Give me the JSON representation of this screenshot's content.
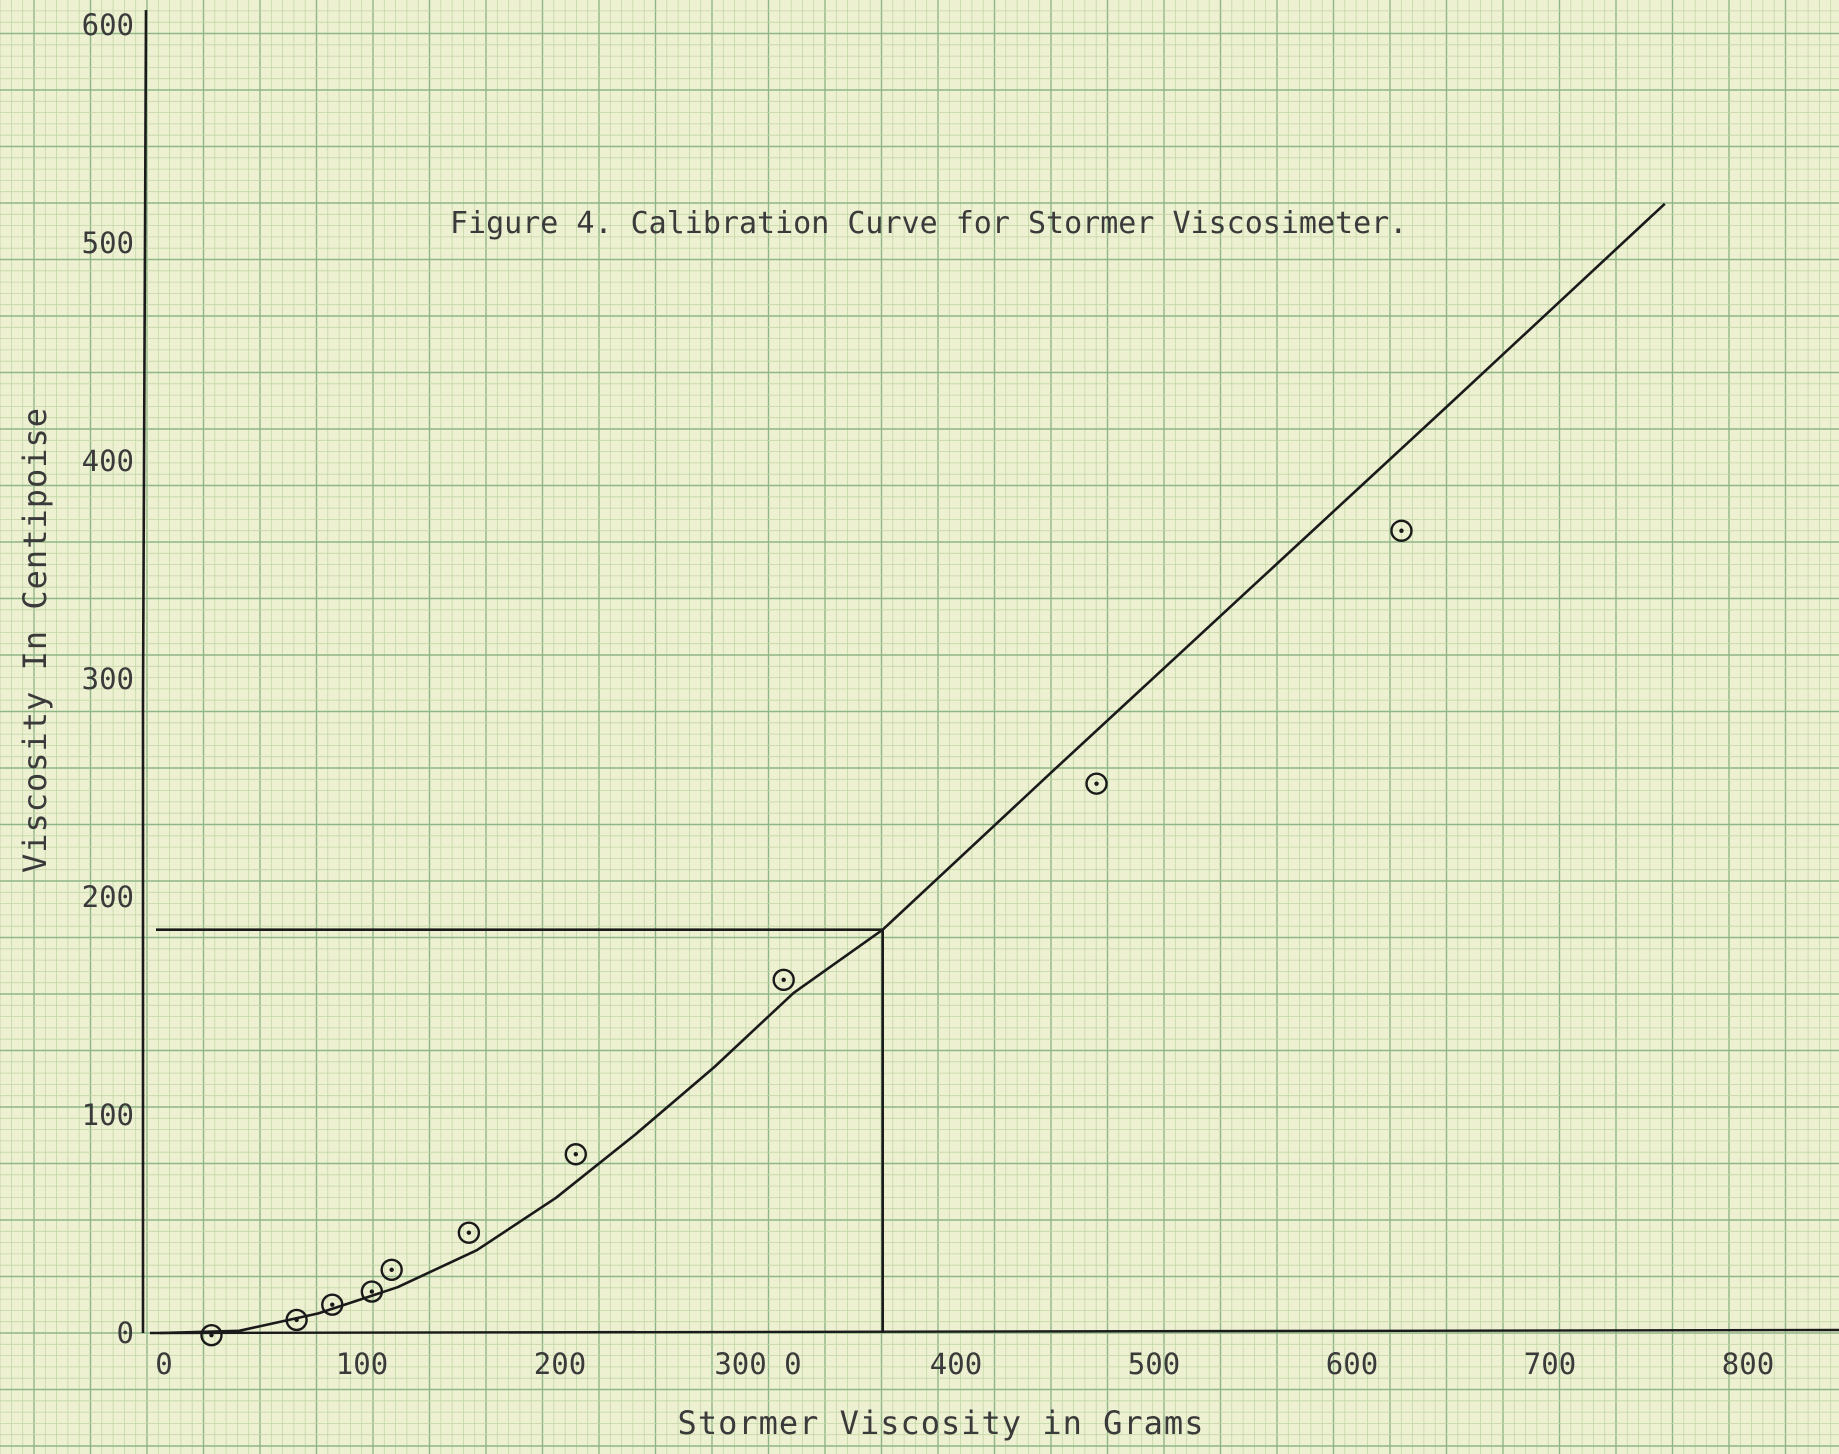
{
  "chart_data": {
    "type": "scatter",
    "title": "Figure 4. Calibration Curve for Stormer Viscosimeter.",
    "xlabel": "Stormer Viscosity in Grams",
    "ylabel": "Viscosity In Centipoise",
    "xlim": [
      0,
      840
    ],
    "ylim": [
      0,
      600
    ],
    "x_ticks": [
      "0",
      "100",
      "200",
      "300 0",
      "400",
      "500",
      "600",
      "700",
      "800"
    ],
    "y_ticks": [
      "0",
      "100",
      "200",
      "300",
      "400",
      "500",
      "600"
    ],
    "grid": true,
    "series": [
      {
        "kind": "points",
        "marker": "circle-dot",
        "x": [
          26,
          69,
          87,
          107,
          117,
          156,
          210,
          315,
          473,
          627
        ],
        "y": [
          -1,
          6,
          13,
          19,
          29,
          46,
          82,
          162,
          252,
          368
        ]
      },
      {
        "kind": "curve",
        "x": [
          0,
          40,
          80,
          120,
          160,
          200,
          240,
          280,
          320,
          365,
          450,
          550,
          650,
          760
        ],
        "y": [
          0,
          1,
          9,
          21,
          38,
          62,
          91,
          122,
          156,
          185,
          257,
          341,
          425,
          518
        ]
      },
      {
        "kind": "reading-lines",
        "x": [
          -2,
          365,
          365
        ],
        "y": [
          185,
          185,
          0
        ]
      }
    ],
    "colors": {
      "paper": "#eef0d2",
      "grid_minor": "#c2d6a6",
      "grid_major": "#8fb685",
      "ink": "#1a1a1a"
    }
  }
}
